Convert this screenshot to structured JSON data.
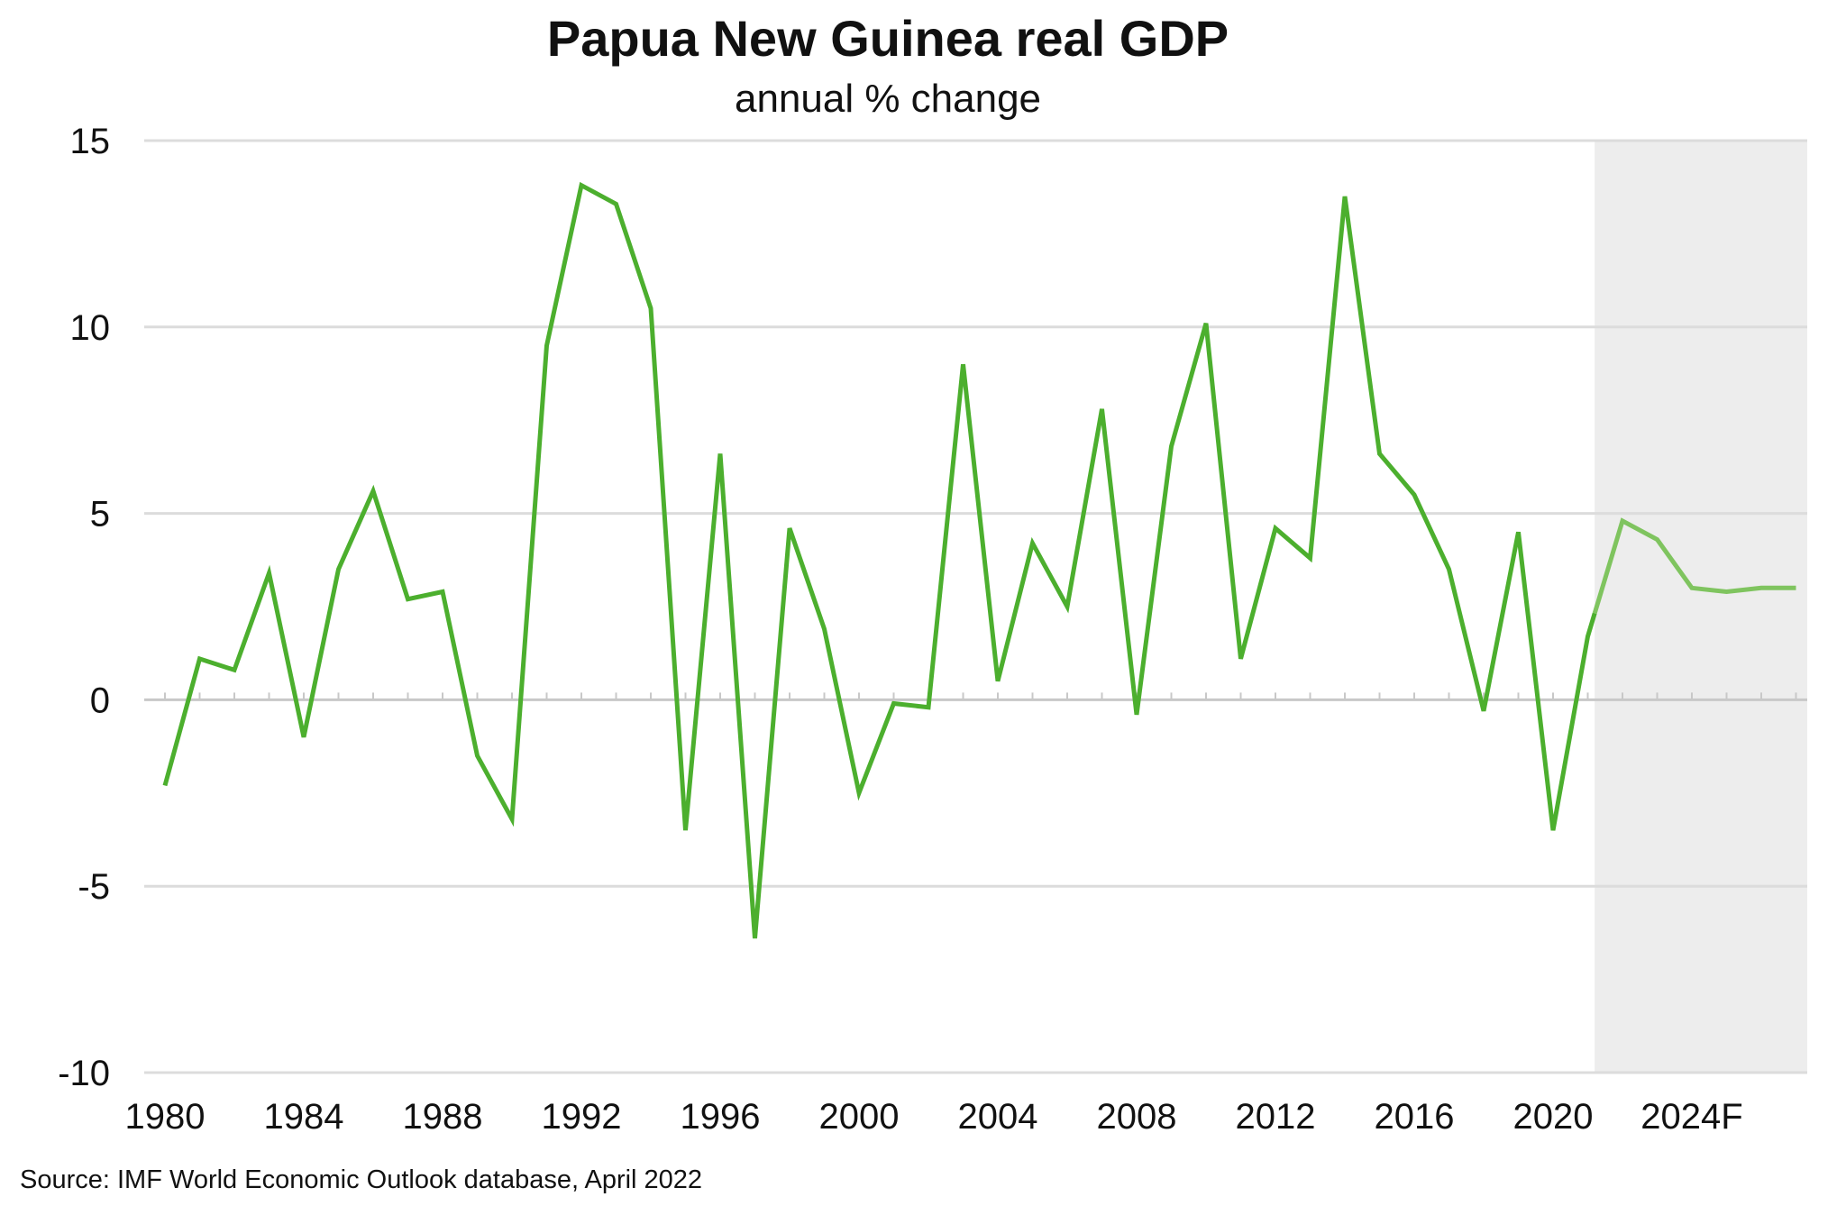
{
  "chart_data": {
    "type": "line",
    "title": "Papua New Guinea real GDP",
    "subtitle": "annual % change",
    "xlabel": "",
    "ylabel": "",
    "source": "Source: IMF World Economic Outlook database, April 2022",
    "ylim": [
      -10,
      15
    ],
    "y_ticks": [
      15,
      10,
      5,
      0,
      -5,
      -10
    ],
    "x_range": [
      1980,
      2027
    ],
    "x_ticks": [
      {
        "year": 1980,
        "label": "1980"
      },
      {
        "year": 1984,
        "label": "1984"
      },
      {
        "year": 1988,
        "label": "1988"
      },
      {
        "year": 1992,
        "label": "1992"
      },
      {
        "year": 1996,
        "label": "1996"
      },
      {
        "year": 2000,
        "label": "2000"
      },
      {
        "year": 2004,
        "label": "2004"
      },
      {
        "year": 2008,
        "label": "2008"
      },
      {
        "year": 2012,
        "label": "2012"
      },
      {
        "year": 2016,
        "label": "2016"
      },
      {
        "year": 2020,
        "label": "2020"
      },
      {
        "year": 2024,
        "label": "2024F"
      }
    ],
    "grid": true,
    "forecast_region": [
      2021.2,
      2027.5
    ],
    "colors": {
      "actual": "#4caf2e",
      "forecast": "#7fc45f",
      "shading": "#ededed"
    },
    "series": [
      {
        "x": [
          1980,
          1981,
          1982,
          1983,
          1984,
          1985,
          1986,
          1987,
          1988,
          1989,
          1990,
          1991,
          1992,
          1993,
          1994,
          1995,
          1996,
          1997,
          1998,
          1999,
          2000,
          2001,
          2002,
          2003,
          2004,
          2005,
          2006,
          2007,
          2008,
          2009,
          2010,
          2011,
          2012,
          2013,
          2014,
          2015,
          2016,
          2017,
          2018,
          2019,
          2020,
          2021,
          2022,
          2023,
          2024,
          2025,
          2026,
          2027
        ],
        "values": [
          -2.3,
          1.1,
          0.8,
          3.4,
          -1.0,
          3.5,
          5.6,
          2.7,
          2.9,
          -1.5,
          -3.2,
          9.5,
          13.8,
          13.3,
          10.5,
          -3.5,
          6.6,
          -6.4,
          4.6,
          1.9,
          -2.5,
          -0.1,
          -0.2,
          9.0,
          0.5,
          4.2,
          2.5,
          7.8,
          -0.4,
          6.8,
          10.1,
          1.1,
          4.6,
          3.8,
          13.5,
          6.6,
          5.5,
          3.5,
          -0.3,
          4.5,
          -3.5,
          1.7,
          4.8,
          4.3,
          3.0,
          2.9,
          3.0,
          3.0
        ]
      }
    ]
  }
}
